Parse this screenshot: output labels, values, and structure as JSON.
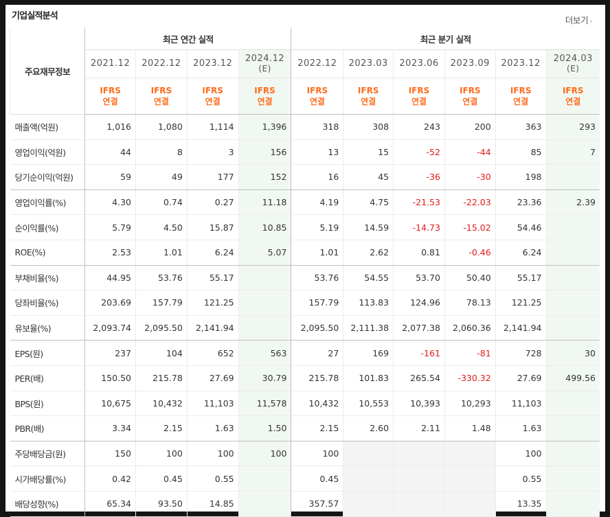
{
  "section": {
    "title": "기업실적분석",
    "more_label": "더보기",
    "more_arrow": "›"
  },
  "header": {
    "row_label": "주요재무정보",
    "annual_group": "최근 연간 실적",
    "quarterly_group": "최근 분기 실적",
    "annual_periods": [
      {
        "period": "2021.12",
        "est": ""
      },
      {
        "period": "2022.12",
        "est": ""
      },
      {
        "period": "2023.12",
        "est": ""
      },
      {
        "period": "2024.12",
        "est": "(E)"
      }
    ],
    "quarterly_periods": [
      {
        "period": "2022.12",
        "est": ""
      },
      {
        "period": "2023.03",
        "est": ""
      },
      {
        "period": "2023.06",
        "est": ""
      },
      {
        "period": "2023.09",
        "est": ""
      },
      {
        "period": "2023.12",
        "est": ""
      },
      {
        "period": "2024.03",
        "est": "(E)"
      }
    ],
    "standard_top": "IFRS",
    "standard_bottom": "연결"
  },
  "rows": [
    {
      "label": "매출액(억원)",
      "values": [
        "1,016",
        "1,080",
        "1,114",
        "1,396",
        "318",
        "308",
        "243",
        "200",
        "363",
        "293"
      ]
    },
    {
      "label": "영업이익(억원)",
      "values": [
        "44",
        "8",
        "3",
        "156",
        "13",
        "15",
        "-52",
        "-44",
        "85",
        "7"
      ]
    },
    {
      "label": "당기순이익(억원)",
      "values": [
        "59",
        "49",
        "177",
        "152",
        "16",
        "45",
        "-36",
        "-30",
        "198",
        ""
      ]
    },
    {
      "label": "영업이익률(%)",
      "values": [
        "4.30",
        "0.74",
        "0.27",
        "11.18",
        "4.19",
        "4.75",
        "-21.53",
        "-22.03",
        "23.36",
        "2.39"
      ]
    },
    {
      "label": "순이익률(%)",
      "values": [
        "5.79",
        "4.50",
        "15.87",
        "10.85",
        "5.19",
        "14.59",
        "-14.73",
        "-15.02",
        "54.46",
        ""
      ]
    },
    {
      "label": "ROE(%)",
      "values": [
        "2.53",
        "1.01",
        "6.24",
        "5.07",
        "1.01",
        "2.62",
        "0.81",
        "-0.46",
        "6.24",
        ""
      ]
    },
    {
      "label": "부채비율(%)",
      "values": [
        "44.95",
        "53.76",
        "55.17",
        "",
        "53.76",
        "54.55",
        "53.70",
        "50.40",
        "55.17",
        ""
      ]
    },
    {
      "label": "당좌비율(%)",
      "values": [
        "203.69",
        "157.79",
        "121.25",
        "",
        "157.79",
        "113.83",
        "124.96",
        "78.13",
        "121.25",
        ""
      ]
    },
    {
      "label": "유보율(%)",
      "values": [
        "2,093.74",
        "2,095.50",
        "2,141.94",
        "",
        "2,095.50",
        "2,111.38",
        "2,077.38",
        "2,060.36",
        "2,141.94",
        ""
      ]
    },
    {
      "label": "EPS(원)",
      "values": [
        "237",
        "104",
        "652",
        "563",
        "27",
        "169",
        "-161",
        "-81",
        "728",
        "30"
      ]
    },
    {
      "label": "PER(배)",
      "values": [
        "150.50",
        "215.78",
        "27.69",
        "30.79",
        "215.78",
        "101.83",
        "265.54",
        "-330.32",
        "27.69",
        "499.56"
      ]
    },
    {
      "label": "BPS(원)",
      "values": [
        "10,675",
        "10,432",
        "11,103",
        "11,578",
        "10,432",
        "10,553",
        "10,393",
        "10,293",
        "11,103",
        ""
      ]
    },
    {
      "label": "PBR(배)",
      "values": [
        "3.34",
        "2.15",
        "1.63",
        "1.50",
        "2.15",
        "2.60",
        "2.11",
        "1.48",
        "1.63",
        ""
      ]
    },
    {
      "label": "주당배당금(원)",
      "values": [
        "150",
        "100",
        "100",
        "100",
        "100",
        "",
        "",
        "",
        "100",
        ""
      ]
    },
    {
      "label": "시가배당률(%)",
      "values": [
        "0.42",
        "0.45",
        "0.55",
        "",
        "0.45",
        "",
        "",
        "",
        "0.55",
        ""
      ]
    },
    {
      "label": "배당성향(%)",
      "values": [
        "65.34",
        "93.50",
        "14.85",
        "",
        "357.57",
        "",
        "",
        "",
        "13.35",
        ""
      ]
    }
  ],
  "group_ends": [
    2,
    5,
    8,
    12
  ],
  "grey_cells": [
    [
      13,
      5
    ],
    [
      13,
      6
    ],
    [
      13,
      7
    ],
    [
      14,
      5
    ],
    [
      14,
      6
    ],
    [
      14,
      7
    ],
    [
      15,
      5
    ],
    [
      15,
      6
    ],
    [
      15,
      7
    ]
  ],
  "estimate_columns": [
    3,
    9
  ],
  "colors": {
    "ifrs": "#ff6b1a",
    "negative": "#e21a1a",
    "estimate_bg": "#f1f8f2",
    "na_bg": "#f4f4f4"
  }
}
